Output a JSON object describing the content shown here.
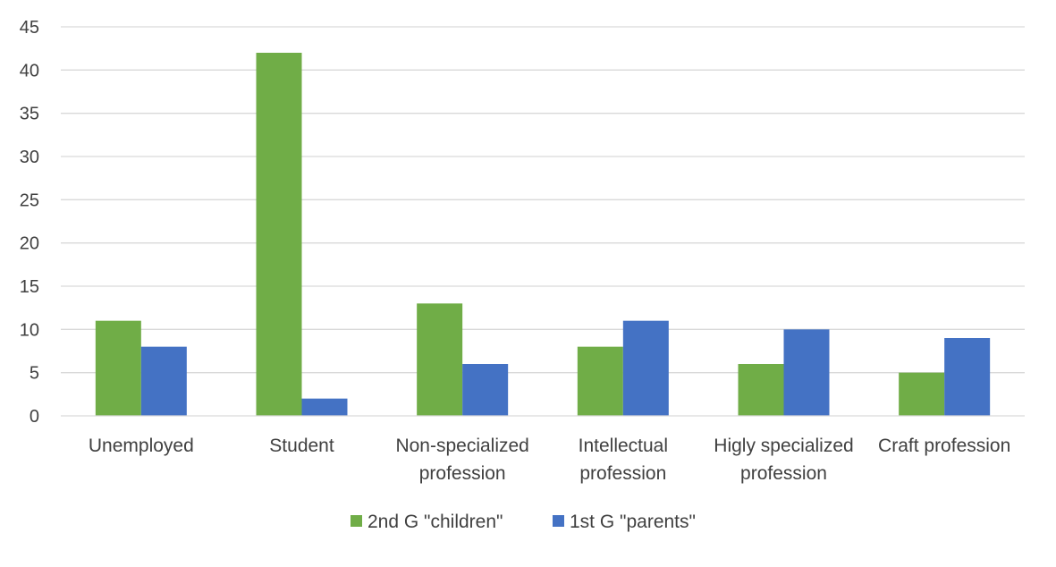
{
  "chart_data": {
    "type": "bar",
    "title": "",
    "xlabel": "",
    "ylabel": "",
    "ylim": [
      0,
      45
    ],
    "yticks": [
      0,
      5,
      10,
      15,
      20,
      25,
      30,
      35,
      40,
      45
    ],
    "grid": true,
    "legend_position": "bottom",
    "categories": [
      [
        "Unemployed"
      ],
      [
        "Student"
      ],
      [
        "Non-specialized",
        "profession"
      ],
      [
        "Intellectual",
        "profession"
      ],
      [
        "Higly specialized",
        "profession"
      ],
      [
        "Craft profession"
      ]
    ],
    "series": [
      {
        "name": "2nd G \"children\"",
        "color": "#70AD47",
        "values": [
          11,
          42,
          13,
          8,
          6,
          5
        ]
      },
      {
        "name": "1st G \"parents\"",
        "color": "#4472C4",
        "values": [
          8,
          2,
          6,
          11,
          10,
          9
        ]
      }
    ]
  }
}
